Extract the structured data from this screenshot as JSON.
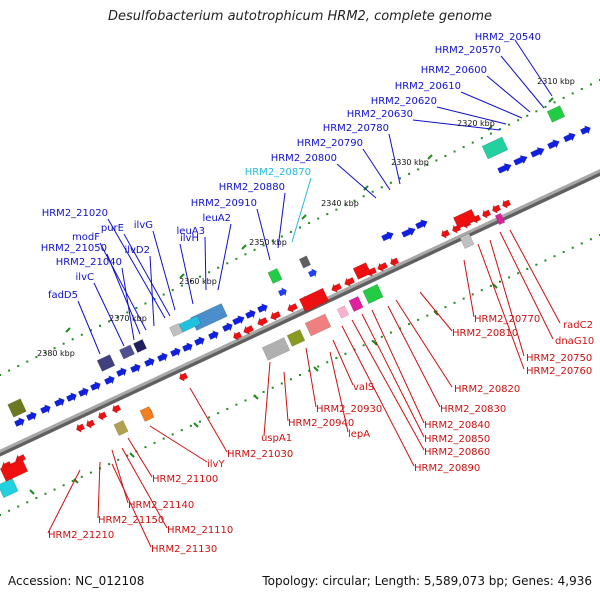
{
  "title": "Desulfobacterium autotrophicum HRM2, complete genome",
  "footer": {
    "accession": "Accession: NC_012108",
    "topology": "Topology: circular; Length: 5,589,073 bp; Genes: 4,936"
  },
  "colors": {
    "forward_label": "#1010cc",
    "reverse_label": "#cc1010",
    "highlight_label": "#22bbdd",
    "backbone": "#888888",
    "tick": "#1e8c1e"
  },
  "kbp_marks": [
    "2310 kbp",
    "2320 kbp",
    "2330 kbp",
    "2340 kbp",
    "2350 kbp",
    "2360 kbp",
    "2370 kbp",
    "2380 kbp"
  ],
  "forward_genes": [
    "HRM2_20540",
    "HRM2_20570",
    "HRM2_20600",
    "HRM2_20610",
    "HRM2_20620",
    "HRM2_20630",
    "HRM2_20780",
    "HRM2_20790",
    "HRM2_20800",
    "HRM2_20870",
    "HRM2_20880",
    "HRM2_20910",
    "leuA2",
    "leuA3",
    "ilvH",
    "ilvG",
    "purE",
    "HRM2_21020",
    "ilvD2",
    "modF",
    "HRM2_21050",
    "HRM2_21040",
    "ilvC",
    "fadD5"
  ],
  "reverse_genes": [
    "radC2",
    "dnaG10",
    "HRM2_20750",
    "HRM2_20760",
    "HRM2_20770",
    "HRM2_20810",
    "HRM2_20820",
    "HRM2_20830",
    "HRM2_20840",
    "HRM2_20850",
    "HRM2_20860",
    "HRM2_20890",
    "valS",
    "lepA",
    "HRM2_20930",
    "HRM2_20940",
    "uspA1",
    "HRM2_21030",
    "ilvY",
    "HRM2_21100",
    "HRM2_21110",
    "HRM2_21140",
    "HRM2_21150",
    "HRM2_21130",
    "HRM2_21210"
  ]
}
